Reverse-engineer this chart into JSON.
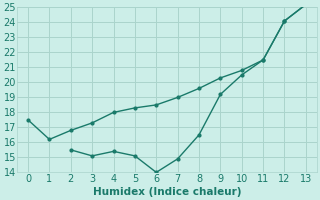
{
  "xlabel": "Humidex (Indice chaleur)",
  "x": [
    0,
    1,
    2,
    3,
    4,
    5,
    6,
    7,
    8,
    9,
    10,
    11,
    12,
    13
  ],
  "line_upper": [
    17.5,
    16.2,
    16.8,
    17.3,
    18.0,
    18.3,
    18.5,
    19.0,
    19.6,
    20.3,
    20.8,
    21.5,
    24.1,
    25.2
  ],
  "line_lower_x": [
    2,
    3,
    4,
    5,
    6,
    7,
    8,
    9,
    10,
    11,
    12,
    13
  ],
  "line_lower_y": [
    15.5,
    15.1,
    15.4,
    15.1,
    14.0,
    14.9,
    16.5,
    19.2,
    20.5,
    21.5,
    24.1,
    25.2
  ],
  "color": "#1a7a6a",
  "bg_color": "#cceee8",
  "grid_color": "#aad4cc",
  "ylim": [
    14,
    25
  ],
  "xlim": [
    -0.5,
    13.5
  ],
  "yticks": [
    14,
    15,
    16,
    17,
    18,
    19,
    20,
    21,
    22,
    23,
    24,
    25
  ],
  "xticks": [
    0,
    1,
    2,
    3,
    4,
    5,
    6,
    7,
    8,
    9,
    10,
    11,
    12,
    13
  ],
  "tick_fontsize": 7,
  "xlabel_fontsize": 7.5
}
